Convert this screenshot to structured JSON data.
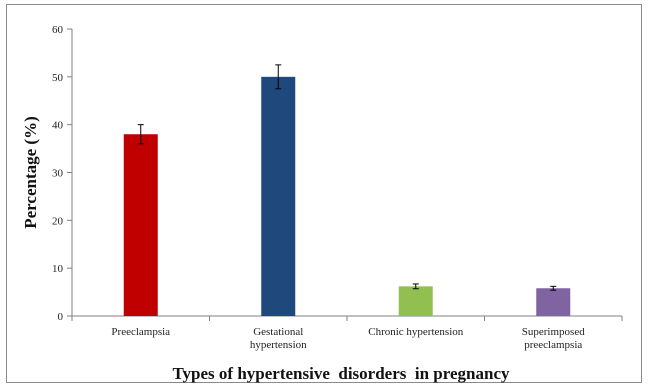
{
  "chart_data": {
    "type": "bar",
    "title": "",
    "xlabel": "Types of hypertensive  disorders  in pregnancy",
    "ylabel": "Percentage (%)",
    "ylim": [
      0,
      60
    ],
    "yticks": [
      0,
      10,
      20,
      30,
      40,
      50,
      60
    ],
    "grid": false,
    "categories": [
      [
        "Preeclampsia"
      ],
      [
        "Gestational",
        "hypertension"
      ],
      [
        "Chronic hypertension"
      ],
      [
        "Superimposed",
        "preeclampsia"
      ]
    ],
    "values": [
      38,
      50,
      6.2,
      5.8
    ],
    "errors": [
      2,
      2.5,
      0.5,
      0.4
    ],
    "colors": [
      "#c00000",
      "#1f497d",
      "#92c050",
      "#8064a2"
    ]
  }
}
